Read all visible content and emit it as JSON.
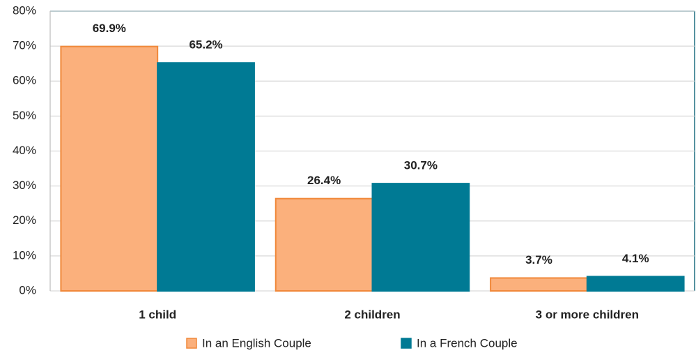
{
  "chart_data": {
    "type": "bar",
    "categories": [
      "1 child",
      "2 children",
      "3 or more children"
    ],
    "series": [
      {
        "name": "In an English Couple",
        "color": "#fbb07c",
        "edge": "#f0883a",
        "values": [
          69.9,
          26.4,
          3.7
        ],
        "value_labels": [
          "69.9%",
          "26.4%",
          "3.7%"
        ]
      },
      {
        "name": "In a French Couple",
        "color": "#007a94",
        "edge": "#007a94",
        "values": [
          65.2,
          30.7,
          4.1
        ],
        "value_labels": [
          "65.2%",
          "30.7%",
          "4.1%"
        ]
      }
    ],
    "ylim": [
      0,
      80
    ],
    "yticks": [
      {
        "value": 0,
        "label": "0%"
      },
      {
        "value": 10,
        "label": "10%"
      },
      {
        "value": 20,
        "label": "20%"
      },
      {
        "value": 30,
        "label": "30%"
      },
      {
        "value": 40,
        "label": "40%"
      },
      {
        "value": 50,
        "label": "50%"
      },
      {
        "value": 60,
        "label": "60%"
      },
      {
        "value": 70,
        "label": "70%"
      },
      {
        "value": 80,
        "label": "80%"
      }
    ],
    "grid": true,
    "legend": "bottom"
  }
}
